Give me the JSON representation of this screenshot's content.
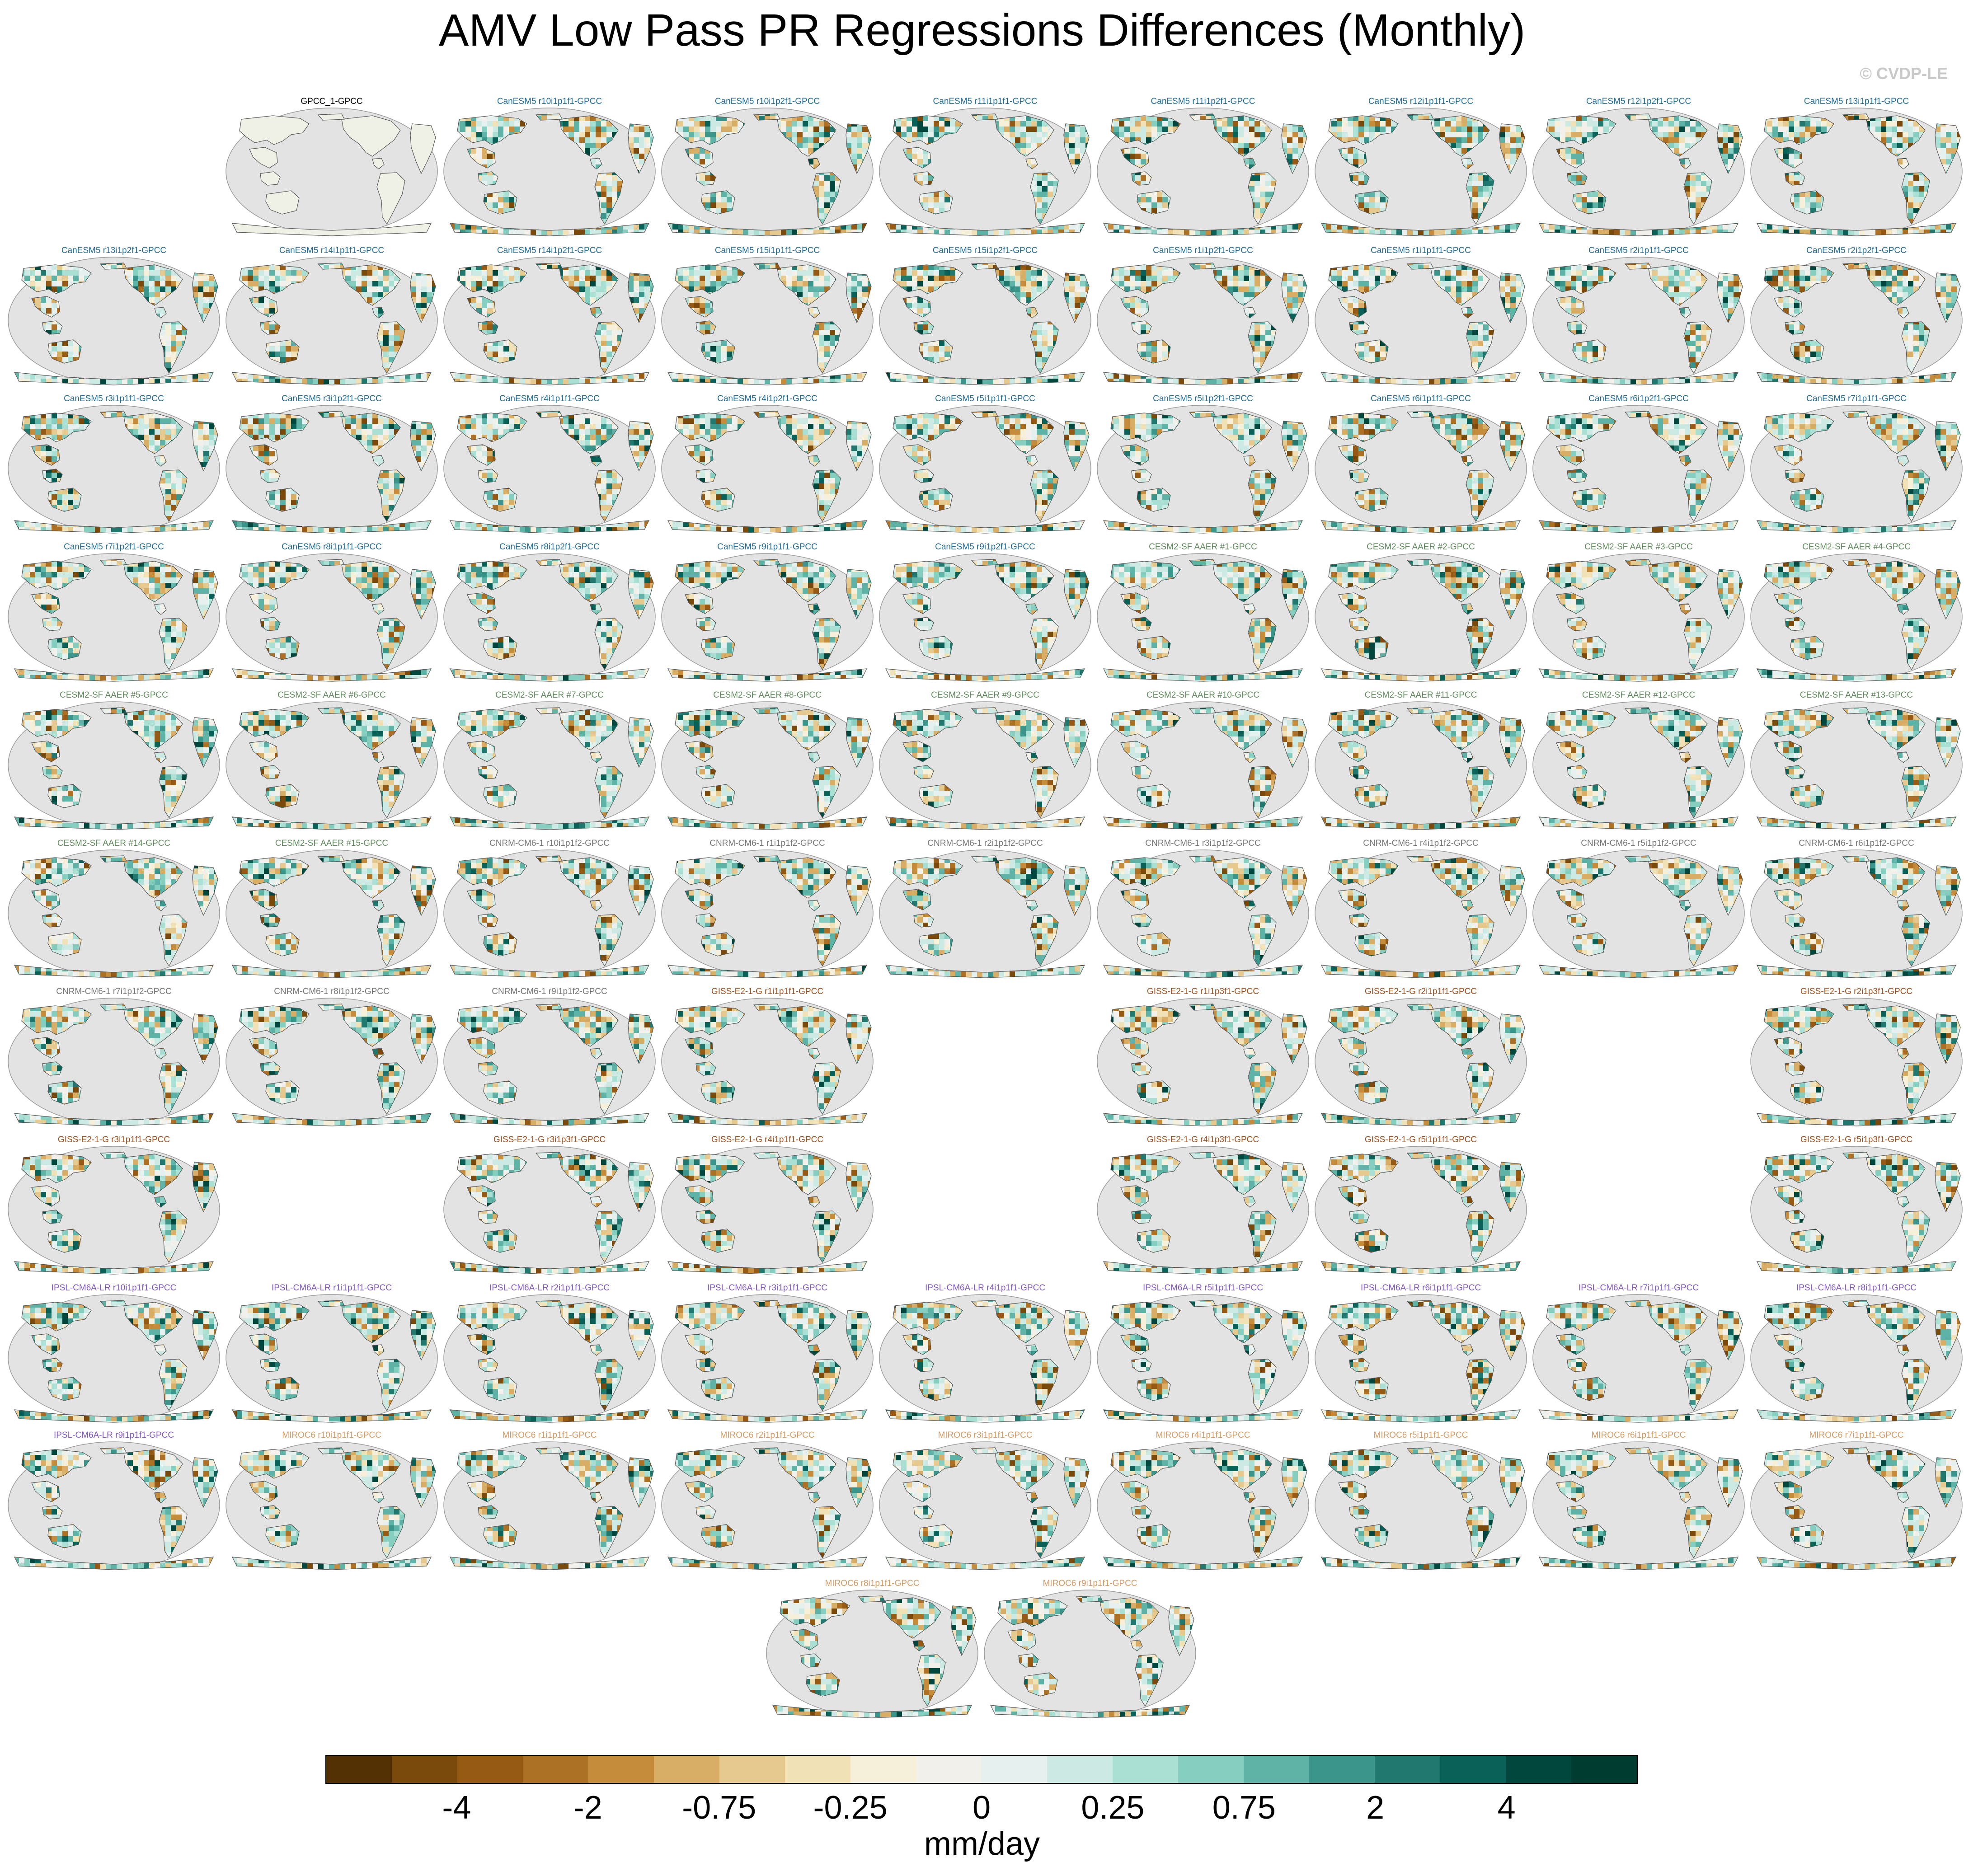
{
  "title": "AMV Low Pass PR Regressions Differences (Monthly)",
  "watermark": "© CVDP-LE",
  "colors": {
    "ocean": "#e3e3e3",
    "coast": "#555555",
    "obs_land": "#eff1e6",
    "CanESM5": "#1d6d98",
    "CESM2-SF AAER": "#5e8c5a",
    "CNRM-CM6-1": "#777777",
    "GISS-E2-1-G": "#a1501c",
    "IPSL-CM6A-LR": "#8357c1",
    "MIROC6": "#d49a62",
    "GPCC": "#000000"
  },
  "colorbar": {
    "units": "mm/day",
    "tick_labels": [
      "-4",
      "-2",
      "-0.75",
      "-0.25",
      "0",
      "0.25",
      "0.75",
      "2",
      "4"
    ],
    "colors": [
      "#543005",
      "#7a4a0d",
      "#965a15",
      "#ad7125",
      "#c58c3c",
      "#d8ae66",
      "#e6c98f",
      "#f1e1b6",
      "#f6efd9",
      "#f2f0eb",
      "#e6f1ef",
      "#cde9e3",
      "#aadfd4",
      "#86cfc0",
      "#5fb3a6",
      "#3b958b",
      "#21786f",
      "#0a6158",
      "#01473e",
      "#003c30"
    ]
  },
  "panels": [
    {
      "label": "GPCC_1-GPCC",
      "model": "GPCC",
      "row": 0,
      "col": 1,
      "obs": true
    },
    {
      "label": "CanESM5 r10i1p1f1-GPCC",
      "model": "CanESM5",
      "row": 0,
      "col": 2
    },
    {
      "label": "CanESM5 r10i1p2f1-GPCC",
      "model": "CanESM5",
      "row": 0,
      "col": 3
    },
    {
      "label": "CanESM5 r11i1p1f1-GPCC",
      "model": "CanESM5",
      "row": 0,
      "col": 4
    },
    {
      "label": "CanESM5 r11i1p2f1-GPCC",
      "model": "CanESM5",
      "row": 0,
      "col": 5
    },
    {
      "label": "CanESM5 r12i1p1f1-GPCC",
      "model": "CanESM5",
      "row": 0,
      "col": 6
    },
    {
      "label": "CanESM5 r12i1p2f1-GPCC",
      "model": "CanESM5",
      "row": 0,
      "col": 7
    },
    {
      "label": "CanESM5 r13i1p1f1-GPCC",
      "model": "CanESM5",
      "row": 0,
      "col": 8
    },
    {
      "label": "CanESM5 r13i1p2f1-GPCC",
      "model": "CanESM5",
      "row": 1,
      "col": 0
    },
    {
      "label": "CanESM5 r14i1p1f1-GPCC",
      "model": "CanESM5",
      "row": 1,
      "col": 1
    },
    {
      "label": "CanESM5 r14i1p2f1-GPCC",
      "model": "CanESM5",
      "row": 1,
      "col": 2
    },
    {
      "label": "CanESM5 r15i1p1f1-GPCC",
      "model": "CanESM5",
      "row": 1,
      "col": 3
    },
    {
      "label": "CanESM5 r15i1p2f1-GPCC",
      "model": "CanESM5",
      "row": 1,
      "col": 4
    },
    {
      "label": "CanESM5 r1i1p2f1-GPCC",
      "model": "CanESM5",
      "row": 1,
      "col": 5
    },
    {
      "label": "CanESM5 r1i1p1f1-GPCC",
      "model": "CanESM5",
      "row": 1,
      "col": 6
    },
    {
      "label": "CanESM5 r2i1p1f1-GPCC",
      "model": "CanESM5",
      "row": 1,
      "col": 7
    },
    {
      "label": "CanESM5 r2i1p2f1-GPCC",
      "model": "CanESM5",
      "row": 1,
      "col": 8
    },
    {
      "label": "CanESM5 r3i1p1f1-GPCC",
      "model": "CanESM5",
      "row": 2,
      "col": 0
    },
    {
      "label": "CanESM5 r3i1p2f1-GPCC",
      "model": "CanESM5",
      "row": 2,
      "col": 1
    },
    {
      "label": "CanESM5 r4i1p1f1-GPCC",
      "model": "CanESM5",
      "row": 2,
      "col": 2
    },
    {
      "label": "CanESM5 r4i1p2f1-GPCC",
      "model": "CanESM5",
      "row": 2,
      "col": 3
    },
    {
      "label": "CanESM5 r5i1p1f1-GPCC",
      "model": "CanESM5",
      "row": 2,
      "col": 4
    },
    {
      "label": "CanESM5 r5i1p2f1-GPCC",
      "model": "CanESM5",
      "row": 2,
      "col": 5
    },
    {
      "label": "CanESM5 r6i1p1f1-GPCC",
      "model": "CanESM5",
      "row": 2,
      "col": 6
    },
    {
      "label": "CanESM5 r6i1p2f1-GPCC",
      "model": "CanESM5",
      "row": 2,
      "col": 7
    },
    {
      "label": "CanESM5 r7i1p1f1-GPCC",
      "model": "CanESM5",
      "row": 2,
      "col": 8
    },
    {
      "label": "CanESM5 r7i1p2f1-GPCC",
      "model": "CanESM5",
      "row": 3,
      "col": 0
    },
    {
      "label": "CanESM5 r8i1p1f1-GPCC",
      "model": "CanESM5",
      "row": 3,
      "col": 1
    },
    {
      "label": "CanESM5 r8i1p2f1-GPCC",
      "model": "CanESM5",
      "row": 3,
      "col": 2
    },
    {
      "label": "CanESM5 r9i1p1f1-GPCC",
      "model": "CanESM5",
      "row": 3,
      "col": 3
    },
    {
      "label": "CanESM5 r9i1p2f1-GPCC",
      "model": "CanESM5",
      "row": 3,
      "col": 4
    },
    {
      "label": "CESM2-SF AAER #1-GPCC",
      "model": "CESM2-SF AAER",
      "row": 3,
      "col": 5
    },
    {
      "label": "CESM2-SF AAER #2-GPCC",
      "model": "CESM2-SF AAER",
      "row": 3,
      "col": 6
    },
    {
      "label": "CESM2-SF AAER #3-GPCC",
      "model": "CESM2-SF AAER",
      "row": 3,
      "col": 7
    },
    {
      "label": "CESM2-SF AAER #4-GPCC",
      "model": "CESM2-SF AAER",
      "row": 3,
      "col": 8
    },
    {
      "label": "CESM2-SF AAER #5-GPCC",
      "model": "CESM2-SF AAER",
      "row": 4,
      "col": 0
    },
    {
      "label": "CESM2-SF AAER #6-GPCC",
      "model": "CESM2-SF AAER",
      "row": 4,
      "col": 1
    },
    {
      "label": "CESM2-SF AAER #7-GPCC",
      "model": "CESM2-SF AAER",
      "row": 4,
      "col": 2
    },
    {
      "label": "CESM2-SF AAER #8-GPCC",
      "model": "CESM2-SF AAER",
      "row": 4,
      "col": 3
    },
    {
      "label": "CESM2-SF AAER #9-GPCC",
      "model": "CESM2-SF AAER",
      "row": 4,
      "col": 4
    },
    {
      "label": "CESM2-SF AAER #10-GPCC",
      "model": "CESM2-SF AAER",
      "row": 4,
      "col": 5
    },
    {
      "label": "CESM2-SF AAER #11-GPCC",
      "model": "CESM2-SF AAER",
      "row": 4,
      "col": 6
    },
    {
      "label": "CESM2-SF AAER #12-GPCC",
      "model": "CESM2-SF AAER",
      "row": 4,
      "col": 7
    },
    {
      "label": "CESM2-SF AAER #13-GPCC",
      "model": "CESM2-SF AAER",
      "row": 4,
      "col": 8
    },
    {
      "label": "CESM2-SF AAER #14-GPCC",
      "model": "CESM2-SF AAER",
      "row": 5,
      "col": 0
    },
    {
      "label": "CESM2-SF AAER #15-GPCC",
      "model": "CESM2-SF AAER",
      "row": 5,
      "col": 1
    },
    {
      "label": "CNRM-CM6-1 r10i1p1f2-GPCC",
      "model": "CNRM-CM6-1",
      "row": 5,
      "col": 2
    },
    {
      "label": "CNRM-CM6-1 r1i1p1f2-GPCC",
      "model": "CNRM-CM6-1",
      "row": 5,
      "col": 3
    },
    {
      "label": "CNRM-CM6-1 r2i1p1f2-GPCC",
      "model": "CNRM-CM6-1",
      "row": 5,
      "col": 4
    },
    {
      "label": "CNRM-CM6-1 r3i1p1f2-GPCC",
      "model": "CNRM-CM6-1",
      "row": 5,
      "col": 5
    },
    {
      "label": "CNRM-CM6-1 r4i1p1f2-GPCC",
      "model": "CNRM-CM6-1",
      "row": 5,
      "col": 6
    },
    {
      "label": "CNRM-CM6-1 r5i1p1f2-GPCC",
      "model": "CNRM-CM6-1",
      "row": 5,
      "col": 7
    },
    {
      "label": "CNRM-CM6-1 r6i1p1f2-GPCC",
      "model": "CNRM-CM6-1",
      "row": 5,
      "col": 8
    },
    {
      "label": "CNRM-CM6-1 r7i1p1f2-GPCC",
      "model": "CNRM-CM6-1",
      "row": 6,
      "col": 0
    },
    {
      "label": "CNRM-CM6-1 r8i1p1f2-GPCC",
      "model": "CNRM-CM6-1",
      "row": 6,
      "col": 1
    },
    {
      "label": "CNRM-CM6-1 r9i1p1f2-GPCC",
      "model": "CNRM-CM6-1",
      "row": 6,
      "col": 2
    },
    {
      "label": "GISS-E2-1-G r1i1p1f1-GPCC",
      "model": "GISS-E2-1-G",
      "row": 6,
      "col": 3
    },
    {
      "label": "GISS-E2-1-G r1i1p3f1-GPCC",
      "model": "GISS-E2-1-G",
      "row": 6,
      "col": 5
    },
    {
      "label": "GISS-E2-1-G r2i1p1f1-GPCC",
      "model": "GISS-E2-1-G",
      "row": 6,
      "col": 6
    },
    {
      "label": "GISS-E2-1-G r2i1p3f1-GPCC",
      "model": "GISS-E2-1-G",
      "row": 6,
      "col": 8
    },
    {
      "label": "GISS-E2-1-G r3i1p1f1-GPCC",
      "model": "GISS-E2-1-G",
      "row": 7,
      "col": 0
    },
    {
      "label": "GISS-E2-1-G r3i1p3f1-GPCC",
      "model": "GISS-E2-1-G",
      "row": 7,
      "col": 2
    },
    {
      "label": "GISS-E2-1-G r4i1p1f1-GPCC",
      "model": "GISS-E2-1-G",
      "row": 7,
      "col": 3
    },
    {
      "label": "GISS-E2-1-G r4i1p3f1-GPCC",
      "model": "GISS-E2-1-G",
      "row": 7,
      "col": 5
    },
    {
      "label": "GISS-E2-1-G r5i1p1f1-GPCC",
      "model": "GISS-E2-1-G",
      "row": 7,
      "col": 6
    },
    {
      "label": "GISS-E2-1-G r5i1p3f1-GPCC",
      "model": "GISS-E2-1-G",
      "row": 7,
      "col": 8
    },
    {
      "label": "IPSL-CM6A-LR r10i1p1f1-GPCC",
      "model": "IPSL-CM6A-LR",
      "row": 8,
      "col": 0
    },
    {
      "label": "IPSL-CM6A-LR r1i1p1f1-GPCC",
      "model": "IPSL-CM6A-LR",
      "row": 8,
      "col": 1
    },
    {
      "label": "IPSL-CM6A-LR r2i1p1f1-GPCC",
      "model": "IPSL-CM6A-LR",
      "row": 8,
      "col": 2
    },
    {
      "label": "IPSL-CM6A-LR r3i1p1f1-GPCC",
      "model": "IPSL-CM6A-LR",
      "row": 8,
      "col": 3
    },
    {
      "label": "IPSL-CM6A-LR r4i1p1f1-GPCC",
      "model": "IPSL-CM6A-LR",
      "row": 8,
      "col": 4
    },
    {
      "label": "IPSL-CM6A-LR r5i1p1f1-GPCC",
      "model": "IPSL-CM6A-LR",
      "row": 8,
      "col": 5
    },
    {
      "label": "IPSL-CM6A-LR r6i1p1f1-GPCC",
      "model": "IPSL-CM6A-LR",
      "row": 8,
      "col": 6
    },
    {
      "label": "IPSL-CM6A-LR r7i1p1f1-GPCC",
      "model": "IPSL-CM6A-LR",
      "row": 8,
      "col": 7
    },
    {
      "label": "IPSL-CM6A-LR r8i1p1f1-GPCC",
      "model": "IPSL-CM6A-LR",
      "row": 8,
      "col": 8
    },
    {
      "label": "IPSL-CM6A-LR r9i1p1f1-GPCC",
      "model": "IPSL-CM6A-LR",
      "row": 9,
      "col": 0
    },
    {
      "label": "MIROC6 r10i1p1f1-GPCC",
      "model": "MIROC6",
      "row": 9,
      "col": 1
    },
    {
      "label": "MIROC6 r1i1p1f1-GPCC",
      "model": "MIROC6",
      "row": 9,
      "col": 2
    },
    {
      "label": "MIROC6 r2i1p1f1-GPCC",
      "model": "MIROC6",
      "row": 9,
      "col": 3
    },
    {
      "label": "MIROC6 r3i1p1f1-GPCC",
      "model": "MIROC6",
      "row": 9,
      "col": 4
    },
    {
      "label": "MIROC6 r4i1p1f1-GPCC",
      "model": "MIROC6",
      "row": 9,
      "col": 5
    },
    {
      "label": "MIROC6 r5i1p1f1-GPCC",
      "model": "MIROC6",
      "row": 9,
      "col": 6
    },
    {
      "label": "MIROC6 r6i1p1f1-GPCC",
      "model": "MIROC6",
      "row": 9,
      "col": 7
    },
    {
      "label": "MIROC6 r7i1p1f1-GPCC",
      "model": "MIROC6",
      "row": 9,
      "col": 8
    },
    {
      "label": "MIROC6 r8i1p1f1-GPCC",
      "model": "MIROC6",
      "row": 10,
      "col": 0
    },
    {
      "label": "MIROC6 r9i1p1f1-GPCC",
      "model": "MIROC6",
      "row": 10,
      "col": 1
    }
  ]
}
